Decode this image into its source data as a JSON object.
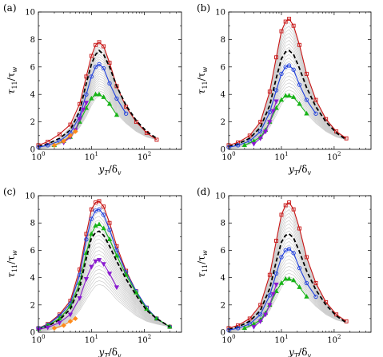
{
  "figure": {
    "x_label": "y_T/δ_v",
    "y_label": "τ_11/τ_w"
  },
  "colors": {
    "red": "#c81414",
    "black": "#000000",
    "blue": "#2040dd",
    "green": "#18b418",
    "purple": "#8a1ad0",
    "orange": "#ff8a1a",
    "gray_band": "#cccccc"
  },
  "chart_data": [
    {
      "panel": "(a)",
      "type": "line",
      "x_scale": "log",
      "xlim": [
        1,
        500
      ],
      "ylim": [
        0,
        10
      ],
      "x_ticks": [
        "10^0",
        "10^1",
        "10^2"
      ],
      "y_ticks": [
        0,
        2,
        4,
        6,
        8,
        10
      ],
      "xlabel": "y_T/δ_v",
      "ylabel": "τ_11/τ_w",
      "grey_band": {
        "x": [
          1,
          1.5,
          2.5,
          4,
          6,
          8,
          10,
          12,
          14,
          17,
          22,
          30,
          45,
          70,
          110,
          170
        ],
        "lower": [
          0.05,
          0.12,
          0.35,
          0.8,
          1.6,
          2.4,
          3.2,
          3.7,
          3.9,
          3.8,
          3.4,
          2.6,
          1.9,
          1.3,
          0.9,
          0.7
        ],
        "upper": [
          0.2,
          0.4,
          0.8,
          1.6,
          3.0,
          5.0,
          6.5,
          7.4,
          7.8,
          7.5,
          6.3,
          4.5,
          3.1,
          2.0,
          1.2,
          0.7
        ]
      },
      "series": [
        {
          "color": "red",
          "marker": "square",
          "dashed": false,
          "x": [
            1,
            1.5,
            2.5,
            4,
            6,
            8,
            10,
            12,
            14,
            17,
            22,
            30,
            45,
            70,
            110,
            170
          ],
          "y": [
            0.3,
            0.55,
            1.1,
            1.8,
            3.3,
            5.3,
            6.8,
            7.6,
            7.8,
            7.5,
            6.3,
            4.6,
            3.1,
            2.0,
            1.2,
            0.7
          ]
        },
        {
          "color": "black",
          "marker": "none",
          "dashed": true,
          "x": [
            1,
            1.5,
            2.5,
            4,
            6,
            8,
            10,
            12,
            14,
            17,
            22,
            30,
            45,
            70,
            110,
            170
          ],
          "y": [
            0.2,
            0.4,
            0.8,
            1.4,
            2.8,
            4.8,
            6.2,
            6.9,
            7.2,
            6.9,
            6.0,
            4.6,
            3.2,
            2.1,
            1.3,
            0.8
          ]
        },
        {
          "color": "blue",
          "marker": "circle",
          "dashed": false,
          "x": [
            1,
            1.5,
            2.5,
            4,
            6,
            8,
            10,
            12,
            14,
            17,
            22,
            30,
            45
          ],
          "y": [
            0.15,
            0.3,
            0.6,
            1.2,
            2.4,
            4.0,
            5.3,
            6.0,
            6.2,
            5.9,
            4.8,
            3.7,
            2.6
          ]
        },
        {
          "color": "green",
          "marker": "triangle",
          "dashed": false,
          "x": [
            2,
            3,
            4,
            5,
            6,
            8,
            10,
            12,
            14,
            17,
            22,
            30
          ],
          "y": [
            0.3,
            0.6,
            0.9,
            1.4,
            2.0,
            3.0,
            3.7,
            4.0,
            4.0,
            3.8,
            3.3,
            2.5
          ]
        },
        {
          "color": "purple",
          "marker": "triangle-down",
          "dashed": false,
          "x": [
            3,
            4,
            5,
            6,
            7,
            8
          ],
          "y": [
            0.5,
            0.9,
            1.4,
            2.2,
            2.9,
            3.4
          ]
        },
        {
          "color": "orange",
          "marker": "diamond",
          "dashed": false,
          "x": [
            2,
            3,
            4,
            5
          ],
          "y": [
            0.3,
            0.6,
            1.0,
            1.3
          ]
        }
      ]
    },
    {
      "panel": "(b)",
      "type": "line",
      "x_scale": "log",
      "xlim": [
        1,
        500
      ],
      "ylim": [
        0,
        10
      ],
      "x_ticks": [
        "10^0",
        "10^1",
        "10^2"
      ],
      "y_ticks": [
        0,
        2,
        4,
        6,
        8,
        10
      ],
      "xlabel": "y_T/δ_v",
      "ylabel": "τ_11/τ_w",
      "grey_band": {
        "x": [
          1,
          1.5,
          2.5,
          4,
          6,
          8,
          10,
          12,
          14,
          17,
          22,
          30,
          45,
          70,
          110,
          170
        ],
        "lower": [
          0.05,
          0.12,
          0.35,
          0.8,
          1.6,
          2.5,
          3.3,
          3.7,
          3.8,
          3.7,
          3.3,
          2.6,
          1.9,
          1.3,
          0.9,
          0.7
        ],
        "upper": [
          0.2,
          0.4,
          0.9,
          1.9,
          4.0,
          6.5,
          8.5,
          9.3,
          9.5,
          9.0,
          7.6,
          5.5,
          3.6,
          2.2,
          1.3,
          0.8
        ]
      },
      "series": [
        {
          "color": "red",
          "marker": "square",
          "dashed": false,
          "x": [
            1,
            1.5,
            2.5,
            4,
            6,
            8,
            10,
            12,
            14,
            17,
            22,
            30,
            45,
            70,
            110,
            170
          ],
          "y": [
            0.3,
            0.5,
            1.0,
            2.0,
            4.2,
            6.7,
            8.6,
            9.3,
            9.5,
            9.0,
            7.6,
            5.5,
            3.6,
            2.2,
            1.3,
            0.8
          ]
        },
        {
          "color": "black",
          "marker": "none",
          "dashed": true,
          "x": [
            1,
            1.5,
            2.5,
            4,
            6,
            8,
            10,
            12,
            14,
            17,
            22,
            30,
            45,
            70,
            110,
            170
          ],
          "y": [
            0.2,
            0.4,
            0.8,
            1.6,
            3.2,
            5.2,
            6.6,
            7.1,
            7.2,
            6.9,
            5.9,
            4.5,
            3.1,
            2.0,
            1.2,
            0.7
          ]
        },
        {
          "color": "blue",
          "marker": "circle",
          "dashed": false,
          "x": [
            1,
            1.5,
            2.5,
            4,
            6,
            8,
            10,
            12,
            14,
            17,
            22,
            30,
            45
          ],
          "y": [
            0.15,
            0.3,
            0.6,
            1.3,
            2.7,
            4.3,
            5.5,
            6.0,
            6.1,
            5.8,
            4.7,
            3.6,
            2.6
          ]
        },
        {
          "color": "green",
          "marker": "triangle",
          "dashed": false,
          "x": [
            2,
            3,
            4,
            5,
            6,
            8,
            10,
            12,
            14,
            17,
            22,
            30
          ],
          "y": [
            0.3,
            0.6,
            0.9,
            1.4,
            2.0,
            3.0,
            3.6,
            3.9,
            3.9,
            3.8,
            3.3,
            2.6
          ]
        },
        {
          "color": "purple",
          "marker": "triangle-down",
          "dashed": false,
          "x": [
            3,
            4,
            5,
            6,
            7,
            8
          ],
          "y": [
            0.4,
            0.8,
            1.3,
            2.0,
            2.8,
            3.5
          ]
        }
      ]
    },
    {
      "panel": "(c)",
      "type": "line",
      "x_scale": "log",
      "xlim": [
        1,
        500
      ],
      "ylim": [
        0,
        10
      ],
      "x_ticks": [
        "10^0",
        "10^1",
        "10^2"
      ],
      "y_ticks": [
        0,
        2,
        4,
        6,
        8,
        10
      ],
      "xlabel": "y_T/δ_v",
      "ylabel": "τ_11/τ_w",
      "grey_band": {
        "x": [
          1,
          1.5,
          2.5,
          4,
          6,
          8,
          10,
          12,
          14,
          17,
          22,
          30,
          45,
          70,
          110,
          170,
          300
        ],
        "lower": [
          0.05,
          0.12,
          0.35,
          0.8,
          1.6,
          2.4,
          3.0,
          3.4,
          3.5,
          3.4,
          3.0,
          2.4,
          1.8,
          1.2,
          0.8,
          0.6,
          0.4
        ],
        "upper": [
          0.3,
          0.6,
          1.3,
          2.3,
          4.5,
          7.0,
          8.8,
          9.5,
          9.6,
          9.2,
          7.9,
          6.3,
          4.5,
          3.0,
          1.8,
          1.0,
          0.4
        ]
      },
      "series": [
        {
          "color": "red",
          "marker": "square",
          "dashed": false,
          "x": [
            1,
            1.5,
            2.5,
            4,
            6,
            8,
            10,
            12,
            14,
            17,
            22,
            30,
            45,
            70,
            110,
            170,
            300
          ],
          "y": [
            0.3,
            0.6,
            1.3,
            2.3,
            4.6,
            7.2,
            9.0,
            9.5,
            9.6,
            9.2,
            8.0,
            6.3,
            4.5,
            3.0,
            1.8,
            1.0,
            0.4
          ]
        },
        {
          "color": "blue",
          "marker": "circle",
          "dashed": false,
          "x": [
            1,
            1.5,
            2.5,
            4,
            6,
            8,
            10,
            12,
            14,
            17,
            22,
            30,
            45,
            70,
            110,
            170,
            300
          ],
          "y": [
            0.3,
            0.55,
            1.2,
            2.1,
            4.2,
            6.8,
            8.3,
            8.9,
            9.0,
            8.6,
            7.5,
            6.0,
            4.4,
            3.0,
            1.8,
            1.0,
            0.4
          ]
        },
        {
          "color": "green",
          "marker": "triangle",
          "dashed": false,
          "x": [
            1,
            1.5,
            2.5,
            4,
            6,
            8,
            10,
            12,
            14,
            17,
            22,
            30,
            45,
            70,
            110,
            170,
            300
          ],
          "y": [
            0.25,
            0.5,
            1.0,
            1.9,
            3.6,
            5.8,
            7.2,
            7.8,
            7.9,
            7.6,
            6.8,
            5.6,
            4.2,
            2.9,
            1.7,
            1.0,
            0.4
          ]
        },
        {
          "color": "black",
          "marker": "none",
          "dashed": true,
          "x": [
            1,
            1.5,
            2.5,
            4,
            6,
            8,
            10,
            12,
            14,
            17,
            22,
            30,
            45,
            70,
            110,
            170,
            300
          ],
          "y": [
            0.2,
            0.45,
            0.9,
            1.7,
            3.3,
            5.4,
            6.9,
            7.3,
            7.4,
            7.1,
            6.3,
            5.2,
            3.9,
            2.7,
            1.6,
            1.0,
            0.4
          ]
        },
        {
          "color": "purple",
          "marker": "triangle-down",
          "dashed": false,
          "x": [
            1,
            1.5,
            2.5,
            4,
            6,
            8,
            10,
            12,
            14,
            17,
            22,
            30
          ],
          "y": [
            0.2,
            0.35,
            0.7,
            1.3,
            2.5,
            3.9,
            4.8,
            5.2,
            5.3,
            5.0,
            4.3,
            3.3
          ]
        },
        {
          "color": "orange",
          "marker": "diamond",
          "dashed": false,
          "x": [
            2,
            3,
            4,
            5
          ],
          "y": [
            0.3,
            0.5,
            0.8,
            1.0
          ]
        }
      ]
    },
    {
      "panel": "(d)",
      "type": "line",
      "x_scale": "log",
      "xlim": [
        1,
        500
      ],
      "ylim": [
        0,
        10
      ],
      "x_ticks": [
        "10^0",
        "10^1",
        "10^2"
      ],
      "y_ticks": [
        0,
        2,
        4,
        6,
        8,
        10
      ],
      "xlabel": "y_T/δ_v",
      "ylabel": "τ_11/τ_w",
      "grey_band": {
        "x": [
          1,
          1.5,
          2.5,
          4,
          6,
          8,
          10,
          12,
          14,
          17,
          22,
          30,
          45,
          70,
          110,
          170
        ],
        "lower": [
          0.05,
          0.12,
          0.35,
          0.8,
          1.6,
          2.5,
          3.3,
          3.7,
          3.8,
          3.7,
          3.3,
          2.6,
          1.9,
          1.3,
          0.9,
          0.7
        ],
        "upper": [
          0.2,
          0.4,
          0.9,
          1.9,
          4.0,
          6.5,
          8.5,
          9.3,
          9.5,
          9.0,
          7.6,
          5.5,
          3.6,
          2.2,
          1.3,
          0.8
        ]
      },
      "series": [
        {
          "color": "red",
          "marker": "square",
          "dashed": false,
          "x": [
            1,
            1.5,
            2.5,
            4,
            6,
            8,
            10,
            12,
            14,
            17,
            22,
            30,
            45,
            70,
            110,
            170
          ],
          "y": [
            0.3,
            0.5,
            1.0,
            2.0,
            4.2,
            6.7,
            8.6,
            9.3,
            9.5,
            9.0,
            7.6,
            5.5,
            3.6,
            2.2,
            1.3,
            0.8
          ]
        },
        {
          "color": "black",
          "marker": "none",
          "dashed": true,
          "x": [
            1,
            1.5,
            2.5,
            4,
            6,
            8,
            10,
            12,
            14,
            17,
            22,
            30,
            45,
            70,
            110,
            170
          ],
          "y": [
            0.2,
            0.4,
            0.8,
            1.6,
            3.2,
            5.2,
            6.6,
            7.1,
            7.2,
            6.9,
            5.9,
            4.5,
            3.1,
            2.0,
            1.2,
            0.7
          ]
        },
        {
          "color": "blue",
          "marker": "circle",
          "dashed": false,
          "x": [
            1,
            1.5,
            2.5,
            4,
            6,
            8,
            10,
            12,
            14,
            17,
            22,
            30,
            45
          ],
          "y": [
            0.15,
            0.3,
            0.6,
            1.3,
            2.7,
            4.3,
            5.5,
            6.0,
            6.1,
            5.8,
            4.7,
            3.6,
            2.6
          ]
        },
        {
          "color": "green",
          "marker": "triangle",
          "dashed": false,
          "x": [
            2,
            3,
            4,
            5,
            6,
            8,
            10,
            12,
            14,
            17,
            22,
            30
          ],
          "y": [
            0.3,
            0.6,
            0.9,
            1.4,
            2.0,
            3.0,
            3.6,
            3.9,
            3.9,
            3.8,
            3.3,
            2.6
          ]
        },
        {
          "color": "purple",
          "marker": "triangle-down",
          "dashed": false,
          "x": [
            3,
            4,
            5,
            6,
            7,
            8
          ],
          "y": [
            0.4,
            0.8,
            1.3,
            2.0,
            2.8,
            3.5
          ]
        }
      ]
    }
  ]
}
